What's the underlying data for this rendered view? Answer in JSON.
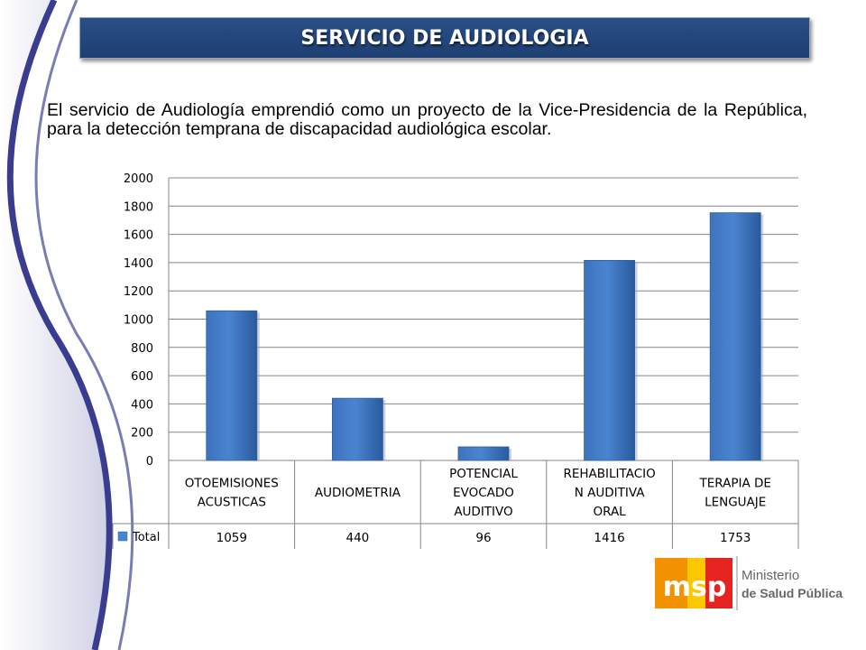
{
  "slide": {
    "title": "SERVICIO DE AUDIOLOGIA",
    "intro": "El servicio de Audiología emprendió como un proyecto de la Vice-Presidencia de la República, para la detección temprana de discapacidad audiológica escolar."
  },
  "chart_data": {
    "type": "bar",
    "categories": [
      [
        "OTOEMISIONES",
        "ACUSTICAS"
      ],
      [
        "AUDIOMETRIA"
      ],
      [
        "POTENCIAL",
        "EVOCADO",
        "AUDITIVO"
      ],
      [
        "REHABILITACIO",
        "N AUDITIVA",
        "ORAL"
      ],
      [
        "TERAPIA DE",
        "LENGUAJE"
      ]
    ],
    "series": [
      {
        "name": "Total",
        "values": [
          1059,
          440,
          96,
          1416,
          1753
        ]
      }
    ],
    "y_ticks": [
      0,
      200,
      400,
      600,
      800,
      1000,
      1200,
      1400,
      1600,
      1800,
      2000
    ],
    "ylim": [
      0,
      2000
    ],
    "grid": true,
    "data_table": true,
    "bar_color": "#4a84d0"
  },
  "logo": {
    "mark": "msp",
    "text_line1": "Ministerio",
    "text_line2": "de Salud Pública",
    "colors": {
      "orange": "#f39200",
      "yellow": "#fbc800",
      "red": "#e52421",
      "gray": "#8a8a8a"
    }
  }
}
